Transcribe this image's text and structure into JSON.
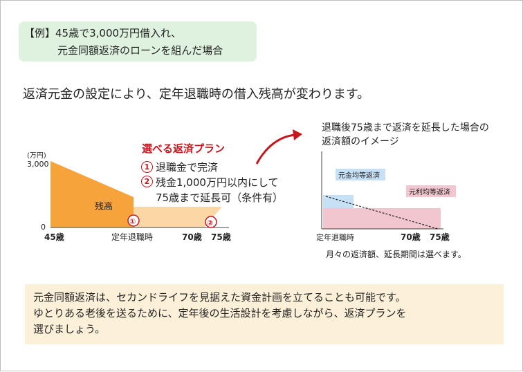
{
  "example": {
    "line1": "【例】45歳で3,000万円借入れ、",
    "line2": "元金同額返済のローンを組んだ場合"
  },
  "headline": "返済元金の設定により、定年退職時の借入残高が変わります。",
  "left_chart": {
    "unit_label": "(万円)",
    "y_max_label": "3,000",
    "y_zero_label": "0",
    "area_label": "残高",
    "x_labels": [
      "45歳",
      "定年退職時",
      "70歳",
      "75歳"
    ],
    "marker1": "①",
    "marker2": "②",
    "colors": {
      "remaining": "#f7a33b",
      "extended": "#fbd7a6"
    }
  },
  "plans": {
    "title": "選べる返済プラン",
    "items": [
      {
        "num": "1",
        "text": "退職金で完済"
      },
      {
        "num": "2",
        "text": "残金1,000万円以内にして"
      },
      {
        "num": "",
        "text": "75歳まで延長可（条件有）"
      }
    ]
  },
  "right_chart": {
    "title_line1": "退職後75歳まで返済を延長した場合の",
    "title_line2": "返済額のイメージ",
    "label_principal": "元金均等返済",
    "label_interest": "元利均等返済",
    "x_labels": [
      "定年退職時",
      "70歳",
      "75歳"
    ],
    "note": "月々の返済額、延長期間は選べます。",
    "colors": {
      "principal": "#c6e0f5",
      "interest": "#f2c6cf"
    }
  },
  "bottom": {
    "line1": "元金同額返済は、セカンドライフを見据えた資金計画を立てることも可能です。",
    "line2": "ゆとりある老後を送るために、定年後の生活設計を考慮しながら、返済プランを",
    "line3": "選びましょう。"
  },
  "accent_color": "#c8161d"
}
